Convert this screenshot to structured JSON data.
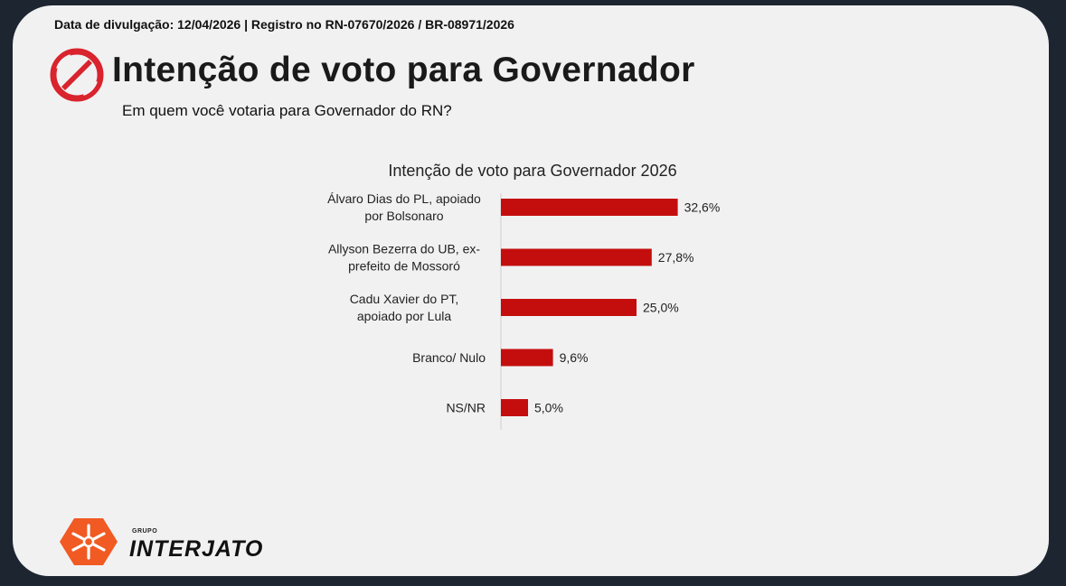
{
  "header": {
    "disclosure": "Data de divulgação: 12/04/2026 | Registro no RN-07670/2026 / BR-08971/2026",
    "headline": "Intenção de voto para Governador",
    "question": "Em quem você votaria para Governador do RN?"
  },
  "brand": {
    "group_label": "GRUPO",
    "name": "INTERJATO",
    "mark_icon": "starburst-logo-icon",
    "mark_color": "#f15a22"
  },
  "header_logo": {
    "icon": "red-circle-logo-icon",
    "color": "#d9232d"
  },
  "chart_data": {
    "type": "bar",
    "orientation": "horizontal",
    "title": "Intenção de voto para Governador 2026",
    "categories": [
      [
        "Álvaro Dias do PL, apoiado",
        "por Bolsonaro"
      ],
      [
        "Allyson Bezerra do UB, ex-",
        "prefeito de Mossoró"
      ],
      [
        "Cadu Xavier do PT,",
        "apoiado por Lula"
      ],
      [
        "Branco/ Nulo"
      ],
      [
        "NS/NR"
      ]
    ],
    "values": [
      32.6,
      27.8,
      25.0,
      9.6,
      5.0
    ],
    "value_labels": [
      "32,6%",
      "27,8%",
      "25,0%",
      "9,6%",
      "5,0%"
    ],
    "unit": "%",
    "bar_color": "#c40e0e",
    "grid": false,
    "legend": "none"
  }
}
